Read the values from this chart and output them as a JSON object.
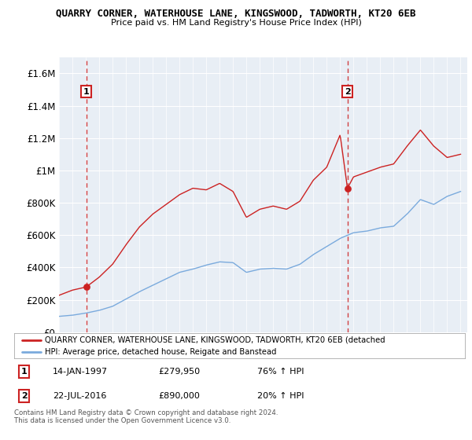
{
  "title": "QUARRY CORNER, WATERHOUSE LANE, KINGSWOOD, TADWORTH, KT20 6EB",
  "subtitle": "Price paid vs. HM Land Registry's House Price Index (HPI)",
  "legend_line1": "QUARRY CORNER, WATERHOUSE LANE, KINGSWOOD, TADWORTH, KT20 6EB (detached",
  "legend_line2": "HPI: Average price, detached house, Reigate and Banstead",
  "sale1_date": "14-JAN-1997",
  "sale1_price": "£279,950",
  "sale1_hpi": "76% ↑ HPI",
  "sale2_date": "22-JUL-2016",
  "sale2_price": "£890,000",
  "sale2_hpi": "20% ↑ HPI",
  "footer": "Contains HM Land Registry data © Crown copyright and database right 2024.\nThis data is licensed under the Open Government Licence v3.0.",
  "ylim": [
    0,
    1700000
  ],
  "yticks": [
    0,
    200000,
    400000,
    600000,
    800000,
    1000000,
    1200000,
    1400000,
    1600000
  ],
  "ytick_labels": [
    "£0",
    "£200K",
    "£400K",
    "£600K",
    "£800K",
    "£1M",
    "£1.2M",
    "£1.4M",
    "£1.6M"
  ],
  "xlim": [
    1995.0,
    2025.5
  ],
  "bg_color": "#e8eef5",
  "grid_color": "#ffffff",
  "red_color": "#cc2222",
  "blue_color": "#7aaadd",
  "sale1_x": 1997.04,
  "sale1_y": 279950,
  "sale2_x": 2016.55,
  "sale2_y": 890000,
  "hpi_anchors_x": [
    1995.0,
    1996.0,
    1997.0,
    1998.0,
    1999.0,
    2000.0,
    2001.0,
    2002.0,
    2003.0,
    2004.0,
    2005.0,
    2006.0,
    2007.0,
    2008.0,
    2009.0,
    2010.0,
    2011.0,
    2012.0,
    2013.0,
    2014.0,
    2015.0,
    2016.0,
    2017.0,
    2018.0,
    2019.0,
    2020.0,
    2021.0,
    2022.0,
    2023.0,
    2024.0,
    2025.0
  ],
  "hpi_anchors_y": [
    98000,
    105000,
    118000,
    135000,
    160000,
    205000,
    250000,
    290000,
    330000,
    370000,
    390000,
    415000,
    435000,
    430000,
    370000,
    390000,
    395000,
    390000,
    420000,
    480000,
    530000,
    580000,
    615000,
    625000,
    645000,
    655000,
    730000,
    820000,
    790000,
    840000,
    870000
  ],
  "red_anchors_x": [
    1995.0,
    1996.0,
    1997.04,
    1998.0,
    1999.0,
    2000.0,
    2001.0,
    2002.0,
    2003.0,
    2004.0,
    2005.0,
    2006.0,
    2007.0,
    2008.0,
    2009.0,
    2010.0,
    2011.0,
    2012.0,
    2013.0,
    2014.0,
    2015.0,
    2016.0,
    2016.55,
    2017.0,
    2018.0,
    2019.0,
    2020.0,
    2021.0,
    2022.0,
    2023.0,
    2024.0,
    2025.0
  ],
  "red_anchors_y": [
    228000,
    260000,
    279950,
    340000,
    420000,
    540000,
    650000,
    730000,
    790000,
    850000,
    890000,
    880000,
    920000,
    870000,
    710000,
    760000,
    780000,
    760000,
    810000,
    940000,
    1020000,
    1220000,
    890000,
    960000,
    990000,
    1020000,
    1040000,
    1150000,
    1250000,
    1150000,
    1080000,
    1100000
  ]
}
